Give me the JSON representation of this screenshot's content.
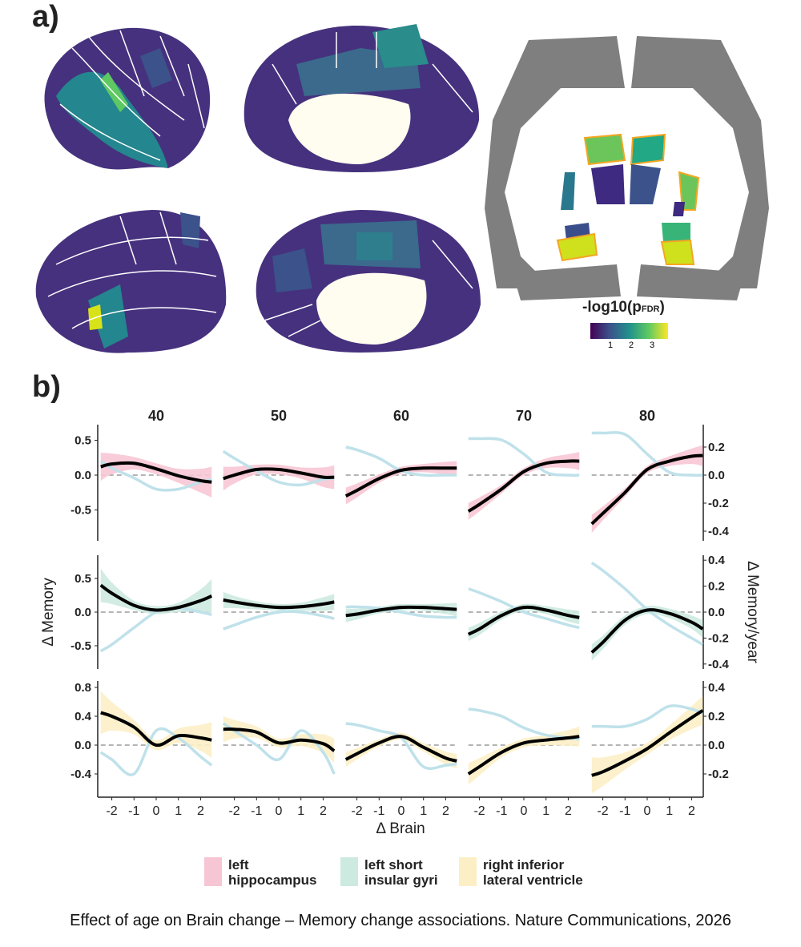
{
  "panel_a": {
    "label": "a)",
    "colorbar": {
      "title": "-log10(p",
      "subscript": "FDR",
      "title_end": ")",
      "ticks": [
        "1",
        "2",
        "3"
      ],
      "colormap": "viridis",
      "range": [
        0,
        3.9
      ]
    },
    "colors": {
      "dark": "#440154",
      "mid": "#3b528b",
      "teal": "#21918c",
      "green": "#5ec962",
      "yellow": "#d8e219",
      "highlight_outline": "#f5a623",
      "slice_gray": "#7f7f7f",
      "ventricle": "#fffdf0"
    }
  },
  "panel_b": {
    "label": "b)"
  },
  "legend": [
    {
      "label_line1": "left",
      "label_line2": "hippocampus",
      "color": "#f7c6d4"
    },
    {
      "label_line1": "left short",
      "label_line2": "insular gyri",
      "color": "#cdeae0"
    },
    {
      "label_line1": "right inferior",
      "label_line2": "lateral ventricle",
      "color": "#fcefc6"
    }
  ],
  "caption": "Effect of age on Brain change – Memory change associations. Nature Communications, 2026",
  "chart_data": {
    "type": "line",
    "facets": [
      "40",
      "50",
      "60",
      "70",
      "80"
    ],
    "xlabel": "Δ Brain",
    "ylabel_left": "Δ Memory",
    "ylabel_right": "Δ Memory/year",
    "x_ticks": [
      "-2",
      "-1",
      "0",
      "1",
      "2"
    ],
    "x": [
      -2.5,
      -2,
      -1,
      0,
      1,
      2,
      2.5
    ],
    "colors": {
      "fit": "#000000",
      "memory_per_year": "#bfe1ea"
    },
    "rows": [
      {
        "region": "left hippocampus",
        "band_color": "#f7c6d4",
        "left_ticks": [
          "0.5",
          "0.0",
          "-0.5"
        ],
        "left_tick_values": [
          0.5,
          0,
          -0.5
        ],
        "right_ticks": [
          "0.2",
          "0.0",
          "-0.2",
          "-0.4"
        ],
        "right_tick_values": [
          0.2,
          0,
          -0.2,
          -0.4
        ],
        "ylim_left": [
          -0.95,
          0.7
        ],
        "panels": [
          {
            "fit": [
              0.12,
              0.16,
              0.17,
              0.09,
              -0.01,
              -0.08,
              -0.1
            ],
            "ci": [
              0.2,
              0.15,
              0.09,
              0.08,
              0.1,
              0.17,
              0.22
            ],
            "per_year": [
              0.1,
              0.05,
              -0.02,
              -0.1,
              -0.1,
              -0.05,
              -0.03
            ]
          },
          {
            "fit": [
              -0.05,
              0.0,
              0.08,
              0.08,
              0.03,
              -0.03,
              -0.03
            ],
            "ci": [
              0.17,
              0.12,
              0.07,
              0.07,
              0.08,
              0.14,
              0.17
            ],
            "per_year": [
              0.17,
              0.12,
              0.03,
              -0.05,
              -0.07,
              -0.03,
              -0.02
            ]
          },
          {
            "fit": [
              -0.3,
              -0.22,
              -0.05,
              0.07,
              0.1,
              0.1,
              0.1
            ],
            "ci": [
              0.12,
              0.1,
              0.06,
              0.05,
              0.06,
              0.09,
              0.1
            ],
            "per_year": [
              0.2,
              0.18,
              0.12,
              0.03,
              0.0,
              0.0,
              0.0
            ]
          },
          {
            "fit": [
              -0.52,
              -0.42,
              -0.2,
              0.05,
              0.17,
              0.2,
              0.2
            ],
            "ci": [
              0.12,
              0.1,
              0.06,
              0.05,
              0.07,
              0.1,
              0.13
            ],
            "per_year": [
              0.26,
              0.26,
              0.25,
              0.15,
              0.02,
              0.0,
              0.0
            ]
          },
          {
            "fit": [
              -0.7,
              -0.55,
              -0.25,
              0.08,
              0.2,
              0.27,
              0.28
            ],
            "ci": [
              0.13,
              0.1,
              0.06,
              0.05,
              0.07,
              0.11,
              0.15
            ],
            "per_year": [
              0.3,
              0.3,
              0.29,
              0.15,
              0.02,
              0.0,
              0.0
            ]
          }
        ]
      },
      {
        "region": "left short insular gyri",
        "band_color": "#cdeae0",
        "left_ticks": [
          "0.5",
          "0.0",
          "-0.5"
        ],
        "left_tick_values": [
          0.5,
          0,
          -0.5
        ],
        "right_ticks": [
          "0.4",
          "0.2",
          "0.0",
          "-0.2",
          "-0.4"
        ],
        "right_tick_values": [
          0.4,
          0.2,
          0,
          -0.2,
          -0.4
        ],
        "ylim_left": [
          -0.85,
          0.85
        ],
        "panels": [
          {
            "fit": [
              0.4,
              0.28,
              0.1,
              0.03,
              0.07,
              0.17,
              0.24
            ],
            "ci": [
              0.25,
              0.16,
              0.07,
              0.06,
              0.07,
              0.17,
              0.25
            ],
            "per_year": [
              -0.3,
              -0.25,
              -0.12,
              0.0,
              0.03,
              0.0,
              -0.02
            ]
          },
          {
            "fit": [
              0.18,
              0.15,
              0.1,
              0.07,
              0.08,
              0.12,
              0.15
            ],
            "ci": [
              0.12,
              0.09,
              0.06,
              0.05,
              0.06,
              0.1,
              0.12
            ],
            "per_year": [
              -0.13,
              -0.1,
              -0.04,
              0.0,
              0.0,
              -0.03,
              -0.05
            ]
          },
          {
            "fit": [
              -0.05,
              -0.03,
              0.03,
              0.07,
              0.07,
              0.05,
              0.04
            ],
            "ci": [
              0.1,
              0.08,
              0.05,
              0.05,
              0.05,
              0.08,
              0.1
            ],
            "per_year": [
              0.04,
              0.04,
              0.03,
              0.0,
              -0.03,
              -0.04,
              -0.04
            ]
          },
          {
            "fit": [
              -0.33,
              -0.25,
              -0.05,
              0.07,
              0.03,
              -0.05,
              -0.08
            ],
            "ci": [
              0.1,
              0.09,
              0.06,
              0.05,
              0.06,
              0.09,
              0.1
            ],
            "per_year": [
              0.18,
              0.15,
              0.08,
              0.0,
              -0.05,
              -0.1,
              -0.12
            ]
          },
          {
            "fit": [
              -0.6,
              -0.45,
              -0.12,
              0.03,
              -0.02,
              -0.15,
              -0.25
            ],
            "ci": [
              0.12,
              0.1,
              0.07,
              0.06,
              0.07,
              0.1,
              0.13
            ],
            "per_year": [
              0.38,
              0.32,
              0.18,
              0.02,
              -0.1,
              -0.2,
              -0.25
            ]
          }
        ]
      },
      {
        "region": "right inferior lateral ventricle",
        "band_color": "#fcefc6",
        "left_ticks": [
          "0.8",
          "0.4",
          "0.0",
          "-0.4"
        ],
        "left_tick_values": [
          0.8,
          0.4,
          0,
          -0.4
        ],
        "right_ticks": [
          "0.4",
          "0.2",
          "0.0",
          "-0.2"
        ],
        "right_tick_values": [
          0.4,
          0.2,
          0,
          -0.2
        ],
        "ylim_left": [
          -0.72,
          0.88
        ],
        "panels": [
          {
            "fit": [
              0.45,
              0.4,
              0.25,
              0.0,
              0.13,
              0.1,
              0.07
            ],
            "ci": [
              0.3,
              0.2,
              0.1,
              0.07,
              0.1,
              0.18,
              0.25
            ],
            "per_year": [
              -0.05,
              -0.1,
              -0.2,
              0.1,
              0.05,
              -0.08,
              -0.14
            ]
          },
          {
            "fit": [
              0.22,
              0.22,
              0.18,
              0.03,
              0.07,
              0.02,
              -0.08
            ],
            "ci": [
              0.18,
              0.13,
              0.08,
              0.06,
              0.08,
              0.13,
              0.17
            ],
            "per_year": [
              0.15,
              0.1,
              0.0,
              -0.1,
              0.1,
              -0.05,
              -0.2
            ]
          },
          {
            "fit": [
              -0.2,
              -0.12,
              0.03,
              0.12,
              -0.03,
              -0.18,
              -0.22
            ],
            "ci": [
              0.1,
              0.08,
              0.05,
              0.05,
              0.06,
              0.09,
              0.1
            ],
            "per_year": [
              0.15,
              0.14,
              0.1,
              0.05,
              -0.15,
              -0.14,
              -0.13
            ]
          },
          {
            "fit": [
              -0.4,
              -0.3,
              -0.1,
              0.03,
              0.07,
              0.1,
              0.12
            ],
            "ci": [
              0.15,
              0.12,
              0.07,
              0.06,
              0.07,
              0.11,
              0.14
            ],
            "per_year": [
              0.25,
              0.24,
              0.2,
              0.12,
              0.07,
              0.05,
              0.04
            ]
          },
          {
            "fit": [
              -0.42,
              -0.37,
              -0.22,
              -0.05,
              0.17,
              0.38,
              0.48
            ],
            "ci": [
              0.25,
              0.2,
              0.12,
              0.08,
              0.1,
              0.16,
              0.2
            ],
            "per_year": [
              0.13,
              0.13,
              0.13,
              0.18,
              0.27,
              0.25,
              0.22
            ]
          }
        ]
      }
    ]
  }
}
